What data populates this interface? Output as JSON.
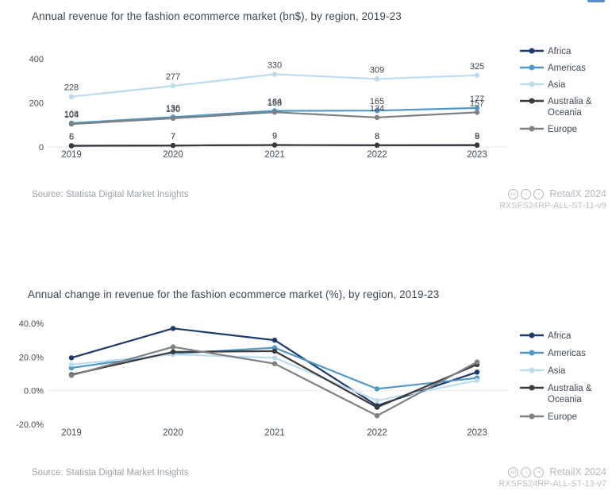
{
  "chart_data": [
    {
      "type": "line",
      "title": "Annual revenue for the fashion ecommerce market (bn$), by region, 2019-23",
      "categories": [
        "2019",
        "2020",
        "2021",
        "2022",
        "2023"
      ],
      "series": [
        {
          "name": "Africa",
          "color": "#1d3a6d",
          "values": [
            5,
            7,
            9,
            8,
            8
          ]
        },
        {
          "name": "Americas",
          "color": "#4e97c6",
          "values": [
            108,
            136,
            164,
            165,
            177
          ]
        },
        {
          "name": "Asia",
          "color": "#bcdcee",
          "values": [
            228,
            277,
            330,
            309,
            325
          ]
        },
        {
          "name": "Australia & Oceania",
          "color": "#3a3a3c",
          "values": [
            6,
            7,
            9,
            8,
            9
          ]
        },
        {
          "name": "Europe",
          "color": "#7d8084",
          "values": [
            104,
            130,
            158,
            134,
            157
          ]
        }
      ],
      "ylim": [
        0,
        400
      ],
      "yticks": [
        {
          "value": 0,
          "label": "0"
        },
        {
          "value": 200,
          "label": "200"
        },
        {
          "value": 400,
          "label": "400"
        }
      ],
      "data_labels": true,
      "legend_position": "right",
      "grid": "zero-line-only"
    },
    {
      "type": "line",
      "title": "Annual change in revenue for the fashion ecommerce market (%), by region, 2019-23",
      "categories": [
        "2019",
        "2020",
        "2021",
        "2022",
        "2023"
      ],
      "series": [
        {
          "name": "Africa",
          "color": "#1d3a6d",
          "values": [
            19.5,
            37,
            30,
            -9,
            11
          ]
        },
        {
          "name": "Americas",
          "color": "#4e97c6",
          "values": [
            13.5,
            22,
            25.5,
            1,
            7.5
          ]
        },
        {
          "name": "Asia",
          "color": "#bcdcee",
          "values": [
            15.5,
            21.5,
            19.5,
            -6,
            6
          ]
        },
        {
          "name": "Australia & Oceania",
          "color": "#3a3a3c",
          "values": [
            9.5,
            23,
            23.5,
            -10,
            15.5
          ]
        },
        {
          "name": "Europe",
          "color": "#7d8084",
          "values": [
            9,
            26,
            16,
            -15,
            17
          ]
        }
      ],
      "ylim": [
        -20,
        40
      ],
      "yticks": [
        {
          "value": -20,
          "label": "-20.0%"
        },
        {
          "value": 0,
          "label": "0.0%"
        },
        {
          "value": 20,
          "label": "20.0%"
        },
        {
          "value": 40,
          "label": "40.0%"
        }
      ],
      "data_labels": false,
      "legend_position": "right",
      "grid": "zero-line-only"
    }
  ],
  "charts_meta": [
    {
      "source": "Source: Statista Digital Market Insights",
      "brand": "RetailX 2024",
      "code": "RXSFS24RP-ALL-ST-11-v9"
    },
    {
      "source": "Source: Statista Digital Market Insights",
      "brand": "RetailX 2024",
      "code": "RXSFS24RP-ALL-ST-13-v7"
    }
  ],
  "footer_icons": [
    {
      "name": "cc-icon",
      "glyph": "cc"
    },
    {
      "name": "cc-by-icon",
      "glyph": "i"
    },
    {
      "name": "cc-nd-icon",
      "glyph": "="
    }
  ],
  "colors": {
    "grid_line": "#eceef0",
    "tick_text": "#414c57",
    "data_label_text": "#3d4751",
    "legend_text": "#3f4a56",
    "corner_accent": "#5b8fc9"
  }
}
